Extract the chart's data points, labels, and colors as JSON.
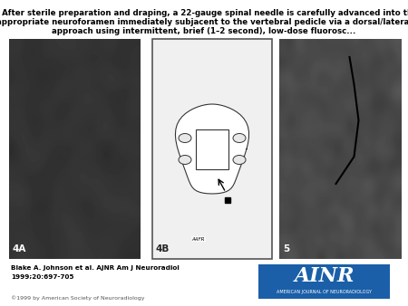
{
  "title_line1": "A, After sterile preparation and draping, a 22-gauge spinal needle is carefully advanced into the",
  "title_line2": "appropriate neuroforamen immediately subjacent to the vertebral pedicle via a dorsal/lateral",
  "title_line3": "approach using intermittent, brief (1–2 second), low-dose fluorosc...",
  "label_4A": "4A",
  "label_4B": "4B",
  "label_5": "5",
  "citation_line1": "Blake A. Johnson et al. AJNR Am J Neuroradiol",
  "citation_line2": "1999;20:697-705",
  "copyright": "©1999 by American Society of Neuroradiology",
  "ainr_box_color": "#1a5fa8",
  "ainr_text": "AINR",
  "ainr_subtext": "AMERICAN JOURNAL OF NEURORADIOLOGY",
  "bg_color": "#ffffff",
  "panel_border_color": "#333333",
  "panel_4b_border": "#555555"
}
